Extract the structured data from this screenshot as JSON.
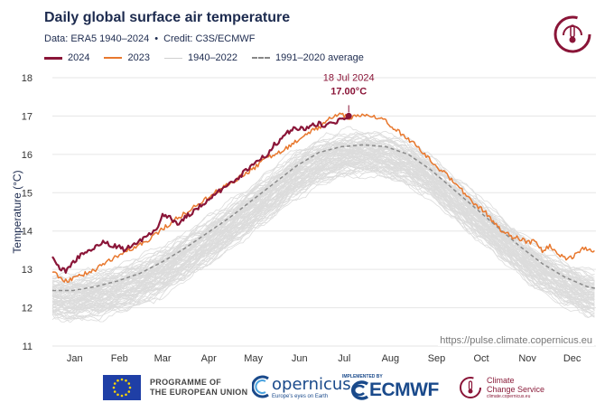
{
  "header": {
    "title": "Daily global surface air temperature",
    "subtitle_data": "Data: ERA5 1940–2024",
    "subtitle_separator": "•",
    "subtitle_credit": "Credit: C3S/ECMWF"
  },
  "legend": {
    "items": [
      {
        "label": "2024",
        "color": "#8a1538",
        "style": "solid-thick"
      },
      {
        "label": "2023",
        "color": "#e8782e",
        "style": "solid"
      },
      {
        "label": "1940–2022",
        "color": "#d8d8d8",
        "style": "solid"
      },
      {
        "label": "1991–2020 average",
        "color": "#888888",
        "style": "dashed"
      }
    ]
  },
  "annotation": {
    "date": "18 Jul 2024",
    "value": "17.00°C"
  },
  "source_url": "https://pulse.climate.copernicus.eu",
  "footer": {
    "eu_line1": "PROGRAMME OF",
    "eu_line2": "THE EUROPEAN UNION",
    "copernicus": "opernicus",
    "copernicus_sub": "Europe's eyes on Earth",
    "ecmwf_top": "IMPLEMENTED BY",
    "ecmwf": "ECMWF",
    "c3s_line1": "Climate",
    "c3s_line2": "Change Service",
    "c3s_sub": "climate.copernicus.eu"
  },
  "colors": {
    "year_2024": "#8a1538",
    "year_2023": "#e8782e",
    "history": "#dcdcdc",
    "average": "#8a8a8a",
    "grid": "#e6e6e6",
    "text": "#1d2b4f"
  },
  "chart_data": {
    "type": "line",
    "ylabel": "Temperature (°C)",
    "ylim": [
      11,
      18
    ],
    "yticks": [
      11,
      12,
      13,
      14,
      15,
      16,
      17,
      18
    ],
    "xlim": [
      1,
      366
    ],
    "xtick_labels": [
      "Jan",
      "Feb",
      "Mar",
      "Apr",
      "May",
      "Jun",
      "Jul",
      "Aug",
      "Sep",
      "Oct",
      "Nov",
      "Dec"
    ],
    "xtick_days": [
      16,
      46,
      75,
      106,
      136,
      167,
      197,
      228,
      259,
      289,
      320,
      350
    ],
    "grid": true,
    "series": [
      {
        "name": "2024",
        "x": [
          1,
          5,
          10,
          15,
          20,
          25,
          31,
          35,
          40,
          45,
          50,
          55,
          60,
          65,
          70,
          75,
          80,
          85,
          90,
          95,
          100,
          105,
          110,
          115,
          120,
          125,
          130,
          135,
          140,
          145,
          150,
          155,
          160,
          165,
          170,
          175,
          180,
          185,
          190,
          195,
          200
        ],
        "y": [
          13.35,
          13.05,
          12.95,
          13.2,
          13.35,
          13.5,
          13.6,
          13.7,
          13.65,
          13.6,
          13.5,
          13.65,
          13.75,
          13.9,
          14.0,
          14.4,
          14.35,
          14.2,
          14.35,
          14.5,
          14.65,
          14.8,
          14.95,
          15.1,
          15.25,
          15.35,
          15.55,
          15.7,
          15.85,
          16.0,
          16.25,
          16.4,
          16.6,
          16.7,
          16.65,
          16.75,
          16.8,
          16.75,
          16.85,
          16.9,
          17.0
        ]
      },
      {
        "name": "2023",
        "x": [
          1,
          5,
          10,
          15,
          20,
          25,
          31,
          35,
          40,
          45,
          50,
          55,
          60,
          65,
          70,
          75,
          80,
          85,
          90,
          95,
          100,
          105,
          110,
          115,
          120,
          125,
          130,
          135,
          140,
          145,
          150,
          155,
          160,
          165,
          170,
          175,
          180,
          185,
          190,
          195,
          200,
          205,
          210,
          215,
          220,
          225,
          230,
          235,
          240,
          245,
          250,
          255,
          260,
          265,
          270,
          275,
          280,
          285,
          290,
          295,
          300,
          305,
          310,
          315,
          320,
          325,
          330,
          335,
          340,
          345,
          350,
          355,
          360,
          365
        ],
        "y": [
          12.95,
          12.8,
          12.7,
          12.75,
          12.85,
          12.9,
          13.0,
          13.15,
          13.25,
          13.35,
          13.45,
          13.55,
          13.65,
          13.75,
          13.9,
          14.05,
          14.2,
          14.35,
          14.45,
          14.6,
          14.75,
          14.85,
          15.0,
          15.1,
          15.25,
          15.35,
          15.5,
          15.6,
          15.75,
          15.9,
          16.0,
          16.1,
          16.2,
          16.35,
          16.5,
          16.6,
          16.7,
          16.85,
          17.0,
          17.05,
          16.95,
          17.0,
          17.0,
          17.0,
          16.95,
          16.85,
          16.7,
          16.55,
          16.4,
          16.25,
          16.05,
          15.85,
          15.65,
          15.5,
          15.3,
          15.1,
          14.9,
          14.7,
          14.55,
          14.35,
          14.1,
          13.95,
          13.85,
          13.8,
          13.7,
          13.75,
          13.5,
          13.6,
          13.4,
          13.3,
          13.3,
          13.5,
          13.55,
          13.45
        ]
      },
      {
        "name": "1991–2020 average",
        "x": [
          1,
          15,
          30,
          45,
          60,
          75,
          90,
          105,
          120,
          135,
          150,
          165,
          180,
          195,
          210,
          225,
          240,
          255,
          270,
          285,
          300,
          315,
          330,
          345,
          360,
          366
        ],
        "y": [
          12.45,
          12.45,
          12.55,
          12.7,
          12.9,
          13.2,
          13.55,
          13.95,
          14.35,
          14.8,
          15.25,
          15.7,
          16.05,
          16.2,
          16.25,
          16.2,
          16.0,
          15.6,
          15.1,
          14.6,
          14.1,
          13.6,
          13.15,
          12.8,
          12.55,
          12.5
        ]
      }
    ],
    "history_envelope": {
      "name": "1940–2022",
      "x": [
        1,
        15,
        30,
        45,
        60,
        75,
        90,
        105,
        120,
        135,
        150,
        165,
        180,
        195,
        210,
        225,
        240,
        255,
        270,
        285,
        300,
        315,
        330,
        345,
        360,
        366
      ],
      "lower": [
        11.6,
        11.55,
        11.6,
        11.75,
        11.95,
        12.2,
        12.6,
        13.0,
        13.4,
        13.85,
        14.3,
        14.75,
        15.1,
        15.3,
        15.35,
        15.3,
        15.1,
        14.75,
        14.25,
        13.75,
        13.25,
        12.75,
        12.3,
        11.95,
        11.7,
        11.65
      ],
      "upper": [
        12.95,
        12.95,
        13.05,
        13.2,
        13.4,
        13.7,
        14.05,
        14.45,
        14.85,
        15.3,
        15.75,
        16.2,
        16.5,
        16.65,
        16.7,
        16.65,
        16.45,
        16.05,
        15.55,
        15.05,
        14.55,
        14.05,
        13.6,
        13.3,
        13.05,
        13.0
      ]
    },
    "annotation_point": {
      "x": 200,
      "y": 17.0
    }
  }
}
